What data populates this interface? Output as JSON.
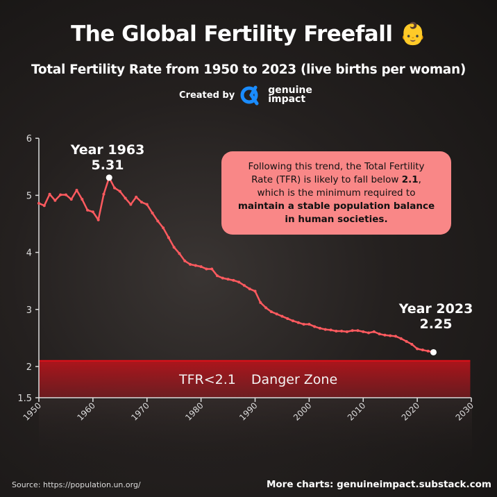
{
  "header": {
    "title": "The Global Fertility Freefall",
    "title_emoji": "👶",
    "subtitle": "Total Fertility Rate from 1950 to 2023 (live births per woman)",
    "created_by": "Created by",
    "logo_line1": "genuine",
    "logo_line2": "impact",
    "logo_color": "#1a8cff"
  },
  "note": {
    "line1": "Following this trend, the Total Fertility",
    "line2a": "Rate (TFR) is likely to fall below ",
    "line2b": "2.1",
    "line2c": ",",
    "line3": "which is the minimum required to",
    "line4": "maintain a stable population balance",
    "line5": "in human societies."
  },
  "annotations": {
    "peak_year": "Year 1963",
    "peak_value": "5.31",
    "last_year": "Year 2023",
    "last_value": "2.25"
  },
  "danger_zone": {
    "label1": "TFR<2.1",
    "label2": "Danger Zone",
    "threshold": 2.1,
    "color": "#c0141c"
  },
  "footer": {
    "source": "Source: https://population.un.org/",
    "more": "More charts: genuineimpact.substack.com"
  },
  "chart_data": {
    "type": "line",
    "title": "Total Fertility Rate from 1950 to 2023 (live births per woman)",
    "xlim": [
      1950,
      2030
    ],
    "ylim": [
      1.5,
      6
    ],
    "x_ticks": [
      1950,
      1960,
      1970,
      1980,
      1990,
      2000,
      2010,
      2020,
      2030
    ],
    "y_ticks": [
      1.5,
      2,
      3,
      4,
      5,
      6
    ],
    "y_tick_labels": [
      "1.5",
      "2",
      "3",
      "4",
      "5",
      "6"
    ],
    "line_color": "#ff5a5f",
    "grid": false,
    "x": [
      1950,
      1951,
      1952,
      1953,
      1954,
      1955,
      1956,
      1957,
      1958,
      1959,
      1960,
      1961,
      1962,
      1963,
      1964,
      1965,
      1966,
      1967,
      1968,
      1969,
      1970,
      1971,
      1972,
      1973,
      1974,
      1975,
      1976,
      1977,
      1978,
      1979,
      1980,
      1981,
      1982,
      1983,
      1984,
      1985,
      1986,
      1987,
      1988,
      1989,
      1990,
      1991,
      1992,
      1993,
      1994,
      1995,
      1996,
      1997,
      1998,
      1999,
      2000,
      2001,
      2002,
      2003,
      2004,
      2005,
      2006,
      2007,
      2008,
      2009,
      2010,
      2011,
      2012,
      2013,
      2014,
      2015,
      2016,
      2017,
      2018,
      2019,
      2020,
      2021,
      2022,
      2023
    ],
    "values": [
      4.86,
      4.82,
      5.02,
      4.91,
      5.01,
      5.01,
      4.93,
      5.09,
      4.93,
      4.74,
      4.71,
      4.57,
      5.02,
      5.31,
      5.13,
      5.07,
      4.95,
      4.84,
      4.97,
      4.88,
      4.84,
      4.69,
      4.55,
      4.43,
      4.26,
      4.09,
      3.98,
      3.85,
      3.79,
      3.77,
      3.75,
      3.71,
      3.71,
      3.59,
      3.55,
      3.53,
      3.51,
      3.48,
      3.42,
      3.36,
      3.32,
      3.12,
      3.03,
      2.96,
      2.92,
      2.88,
      2.84,
      2.8,
      2.77,
      2.74,
      2.74,
      2.7,
      2.67,
      2.65,
      2.64,
      2.62,
      2.62,
      2.61,
      2.63,
      2.63,
      2.61,
      2.59,
      2.61,
      2.57,
      2.55,
      2.54,
      2.53,
      2.49,
      2.44,
      2.39,
      2.31,
      2.29,
      2.27,
      2.25
    ]
  }
}
